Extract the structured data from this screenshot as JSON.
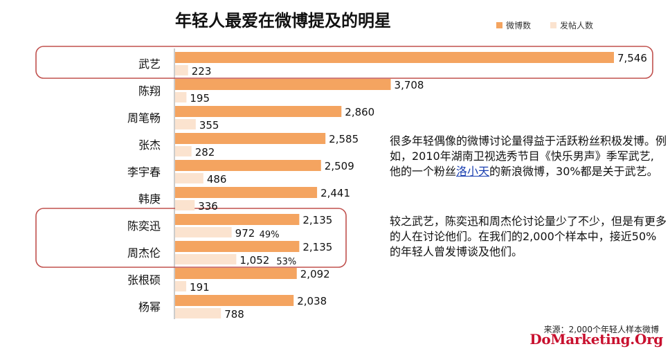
{
  "text": {
    "para1_pre": "很多年轻偶像的微博讨论量得益于活跃粉丝积极发博。例如，2010年湖南卫视选秀节目《快乐男声》季军武艺, 他的一个粉丝",
    "para1_link": "洛小天",
    "para1_post": "的新浪微博，30%都是关于武艺。",
    "para2": "较之武艺，陈奕迅和周杰伦讨论量少了不少，但是有更多的人在讨论他们。在我们的2,000个样本中，接近50%的年轻人曾发博谈及他们。",
    "source": "来源：2,000个年轻人样本微博",
    "watermark": "DoMarketing.Org"
  },
  "colors": {
    "posts": "#f4a460",
    "users": "#fbe3cf",
    "highlight_box": "#c0504d",
    "axis": "#999999"
  },
  "chart_data": {
    "type": "bar",
    "orientation": "horizontal",
    "title": "年轻人最爱在微博提及的明星",
    "categories": [
      "武艺",
      "陈翔",
      "周笔畅",
      "张杰",
      "李宇春",
      "韩庚",
      "陈奕迅",
      "周杰伦",
      "张根硕",
      "杨幂"
    ],
    "series": [
      {
        "name": "微博数",
        "values": [
          7546,
          3708,
          2860,
          2585,
          2509,
          2441,
          2135,
          2135,
          2092,
          2038
        ],
        "labels": [
          "7,546",
          "3,708",
          "2,860",
          "2,585",
          "2,509",
          "2,441",
          "2,135",
          "2,135",
          "2,092",
          "2,038"
        ]
      },
      {
        "name": "发帖人数",
        "values": [
          223,
          195,
          355,
          282,
          486,
          336,
          972,
          1052,
          191,
          788
        ],
        "labels": [
          "223",
          "195",
          "355",
          "282",
          "486",
          "336",
          "972",
          "1,052",
          "191",
          "788"
        ]
      }
    ],
    "annotations": [
      {
        "category": "陈奕迅",
        "text": "49%"
      },
      {
        "category": "周杰伦",
        "text": "53%"
      }
    ],
    "highlight_groups": [
      [
        "武艺"
      ],
      [
        "陈奕迅",
        "周杰伦"
      ]
    ],
    "xlim": [
      0,
      8000
    ],
    "grid": false,
    "legend": "top-right"
  }
}
